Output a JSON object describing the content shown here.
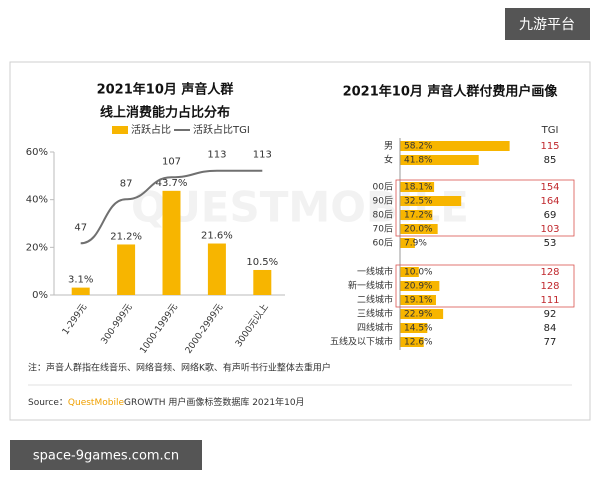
{
  "chart_data": [
    {
      "type": "bar-line",
      "title": "2021年10月 声音人群",
      "subtitle": "线上消费能力占比分布",
      "categories": [
        "1-299元",
        "300-999元",
        "1000-1999元",
        "2000-2999元",
        "3000元以上"
      ],
      "series": [
        {
          "name": "活跃占比",
          "color": "#f7b500",
          "values": [
            3.1,
            21.2,
            43.7,
            21.6,
            10.5
          ],
          "value_labels": [
            "3.1%",
            "21.2%",
            "43.7%",
            "21.6%",
            "10.5%"
          ]
        },
        {
          "name": "活跃占比TGI",
          "color": "#707070",
          "type": "line",
          "axis": "y2",
          "values": [
            47,
            87,
            107,
            113,
            113
          ]
        }
      ],
      "ylim": [
        0,
        60
      ],
      "yticks": [
        {
          "value": 0,
          "label": "0%"
        },
        {
          "value": 20,
          "label": "20%"
        },
        {
          "value": 40,
          "label": "40%"
        },
        {
          "value": 60,
          "label": "60%"
        }
      ],
      "y2lim": [
        0,
        130
      ]
    },
    {
      "type": "hbar",
      "title": "2021年10月 声音人群付费用户画像",
      "tgi_header": "TGI",
      "color": "#f7b500",
      "xlim": [
        0,
        60
      ],
      "groups": [
        {
          "categories": [
            "男",
            "女"
          ],
          "values": [
            58.2,
            41.8
          ],
          "value_labels": [
            "58.2%",
            "41.8%"
          ],
          "tgi": [
            115,
            85
          ],
          "tgi_colors": [
            "#c0282d",
            "#222222"
          ]
        },
        {
          "categories": [
            "00后",
            "90后",
            "80后",
            "70后",
            "60后"
          ],
          "values": [
            18.1,
            32.5,
            17.2,
            20.0,
            7.9
          ],
          "value_labels": [
            "18.1%",
            "32.5%",
            "17.2%",
            "20.0%",
            "7.9%"
          ],
          "tgi": [
            154,
            164,
            69,
            103,
            53
          ],
          "tgi_colors": [
            "#c0282d",
            "#c0282d",
            "#222222",
            "#c0282d",
            "#222222"
          ]
        },
        {
          "categories": [
            "一线城市",
            "新一线城市",
            "二线城市",
            "三线城市",
            "四线城市",
            "五线及以下城市"
          ],
          "values": [
            10.0,
            20.9,
            19.1,
            22.9,
            14.5,
            12.6
          ],
          "value_labels": [
            "10.0%",
            "20.9%",
            "19.1%",
            "22.9%",
            "14.5%",
            "12.6%"
          ],
          "tgi": [
            128,
            128,
            111,
            92,
            84,
            77
          ],
          "tgi_colors": [
            "#c0282d",
            "#c0282d",
            "#c0282d",
            "#222222",
            "#222222",
            "#222222"
          ]
        }
      ]
    }
  ],
  "watermark": "QUESTMOBILE",
  "note": "注：声音人群指在线音乐、网络音频、网络K歌、有声听书行业整体去重用户",
  "source": {
    "label": "Source：",
    "brand": "QuestMobile",
    "text": "GROWTH 用户画像标签数据库 2021年10月"
  },
  "badge": "九游平台",
  "footer_badge": "space-9games.com.cn"
}
